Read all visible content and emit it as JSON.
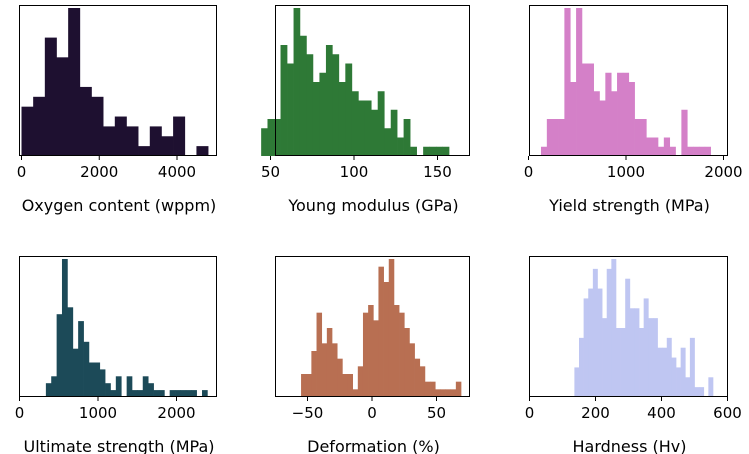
{
  "chart_data": [
    {
      "type": "bar",
      "xlabel": "Oxygen content (wppm)",
      "color": "#1e1030",
      "bar_edges": [
        0,
        300,
        600,
        900,
        1200,
        1500,
        1800,
        2100,
        2400,
        2700,
        3000,
        3300,
        3600,
        3900,
        4200,
        4500,
        4800
      ],
      "values": [
        5,
        6,
        12,
        10,
        15,
        7,
        6,
        3,
        4,
        3,
        1,
        3,
        2,
        4,
        0,
        1
      ],
      "xticks": [
        0,
        2000,
        4000
      ],
      "xtick_labels": [
        "0",
        "2000",
        "4000"
      ]
    },
    {
      "type": "bar",
      "xlabel": "Young modulus (GPa)",
      "color": "#2e7936",
      "bar_edges": [
        44.4,
        48.2,
        52.1,
        56.0,
        59.9,
        63.8,
        67.6,
        71.5,
        75.4,
        79.3,
        83.2,
        87.0,
        90.9,
        94.8,
        98.7,
        102.6,
        106.4,
        110.3,
        114.2,
        118.1,
        122.0,
        125.8,
        129.7,
        133.6,
        137.5,
        141.4,
        145.2,
        149.1,
        153.0,
        156.9
      ],
      "values": [
        3,
        4,
        4,
        12,
        10,
        16,
        13,
        11,
        8,
        9,
        12,
        11,
        8,
        10,
        7,
        6,
        6,
        5,
        7,
        3,
        5,
        2,
        4,
        1,
        0,
        1,
        1,
        1,
        1
      ],
      "xticks": [
        50,
        100,
        150
      ],
      "xtick_labels": [
        "50",
        "100",
        "150"
      ]
    },
    {
      "type": "bar",
      "xlabel": "Yield strength (MPa)",
      "color": "#d480c8",
      "bar_edges": [
        128,
        188,
        248,
        308,
        368,
        428,
        488,
        548,
        608,
        668,
        728,
        788,
        848,
        908,
        968,
        1028,
        1088,
        1148,
        1208,
        1268,
        1328,
        1388,
        1448,
        1508,
        1568,
        1628,
        1688,
        1748,
        1808,
        1868
      ],
      "values": [
        1,
        4,
        4,
        4,
        16,
        8,
        16,
        10,
        10,
        7,
        6,
        9,
        7,
        9,
        9,
        8,
        4,
        4,
        2,
        2,
        1,
        2,
        1,
        0,
        5,
        1,
        1,
        1,
        1
      ],
      "xticks": [
        0,
        1000,
        2000
      ],
      "xtick_labels": [
        "0",
        "1000",
        "2000"
      ]
    },
    {
      "type": "bar",
      "xlabel": "Ultimate strength (MPa)",
      "color": "#1c4a58",
      "bar_edges": [
        336,
        404,
        473,
        541,
        610,
        679,
        747,
        816,
        884,
        953,
        1022,
        1090,
        1159,
        1227,
        1296,
        1365,
        1433,
        1502,
        1570,
        1639,
        1708,
        1776,
        1845,
        1913,
        1982,
        2051,
        2119,
        2188,
        2256,
        2325,
        2393
      ],
      "values": [
        2,
        3,
        12,
        20,
        13,
        7,
        11,
        8,
        5,
        5,
        4,
        2,
        1,
        3,
        0,
        3,
        1,
        1,
        3,
        2,
        1,
        1,
        0,
        1,
        1,
        1,
        1,
        1,
        0,
        1
      ],
      "xticks": [
        0,
        1000,
        2000
      ],
      "xtick_labels": [
        "0",
        "1000",
        "2000"
      ]
    },
    {
      "type": "bar",
      "xlabel": "Deformation (%)",
      "color": "#b86f52",
      "bar_edges": [
        -55,
        -51,
        -47,
        -43,
        -39,
        -35,
        -31,
        -27,
        -23,
        -19,
        -15,
        -11,
        -7,
        -3,
        1,
        5,
        9,
        13,
        17,
        21,
        25,
        29,
        33,
        37,
        41,
        45,
        49,
        53,
        57,
        61,
        65,
        69
      ],
      "values": [
        3,
        3,
        6,
        11,
        7,
        9,
        7,
        5,
        3,
        3,
        1,
        4,
        11,
        12,
        10,
        17,
        15,
        18,
        12,
        11,
        9,
        7,
        5,
        4,
        2,
        2,
        1,
        1,
        1,
        1,
        2
      ],
      "xticks": [
        -50,
        0,
        50
      ],
      "xtick_labels": [
        "−50",
        "0",
        "50"
      ]
    },
    {
      "type": "bar",
      "xlabel": "Hardness (Hv)",
      "color": "#bfc6f2",
      "bar_edges": [
        136,
        150,
        164,
        178,
        192,
        206,
        220,
        234,
        248,
        262,
        276,
        290,
        304,
        318,
        332,
        346,
        360,
        374,
        388,
        402,
        416,
        430,
        444,
        458,
        472,
        486,
        500,
        514,
        528,
        542,
        556
      ],
      "values": [
        3,
        6,
        10,
        11,
        13,
        11,
        8,
        13,
        14,
        7,
        7,
        12,
        9,
        9,
        7,
        10,
        8,
        8,
        5,
        5,
        6,
        4,
        3,
        5,
        2,
        6,
        1,
        1,
        0,
        2
      ],
      "xticks": [
        0,
        200,
        400,
        600
      ],
      "xtick_labels": [
        "0",
        "200",
        "400",
        "600"
      ]
    }
  ]
}
